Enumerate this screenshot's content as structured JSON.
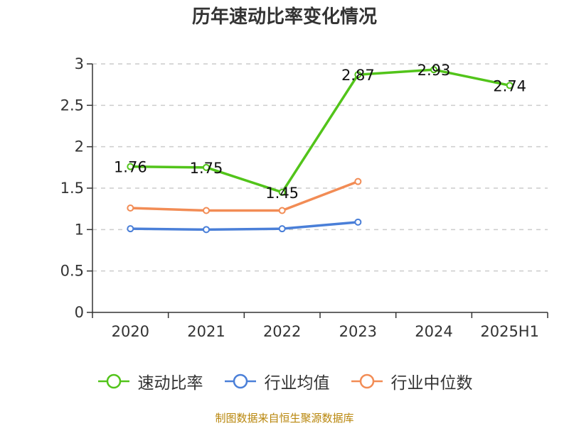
{
  "chart_data": {
    "type": "line",
    "title": "历年速动比率变化情况",
    "categories": [
      "2020",
      "2021",
      "2022",
      "2023",
      "2024",
      "2025H1"
    ],
    "series": [
      {
        "name": "速动比率",
        "values": [
          1.76,
          1.75,
          1.45,
          2.87,
          2.93,
          2.74
        ],
        "color": "#52c41a",
        "labels": [
          "1.76",
          "1.75",
          "1.45",
          "2.87",
          "2.93",
          "2.74"
        ]
      },
      {
        "name": "行业均值",
        "values": [
          1.01,
          1.0,
          1.01,
          1.09,
          null,
          null
        ],
        "color": "#4a7fd8"
      },
      {
        "name": "行业中位数",
        "values": [
          1.26,
          1.23,
          1.23,
          1.58,
          null,
          null
        ],
        "color": "#f28c55"
      }
    ],
    "y_ticks": [
      "0",
      "0.5",
      "1",
      "1.5",
      "2",
      "2.5",
      "3"
    ],
    "ylim": [
      0,
      3
    ],
    "grid": true,
    "legend_position": "bottom"
  },
  "source_text": "制图数据来自恒生聚源数据库"
}
